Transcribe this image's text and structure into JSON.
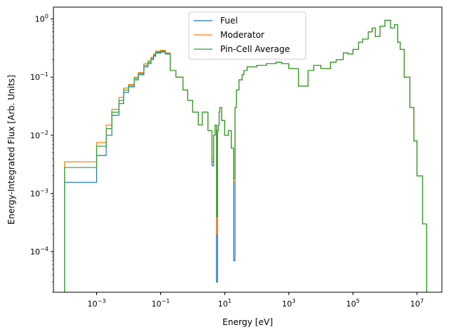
{
  "chart_data": {
    "type": "line",
    "subtype": "step",
    "title": "",
    "xlabel": "Energy [eV]",
    "ylabel": "Energy-Integrated Flux [Arb. Units]",
    "xscale": "log",
    "yscale": "log",
    "xlim": [
      4.5e-05,
      60000000.0
    ],
    "ylim": [
      2e-05,
      1.6
    ],
    "x_ticks": [
      {
        "value": 0.001,
        "base": "10",
        "exp": "−3"
      },
      {
        "value": 0.1,
        "base": "10",
        "exp": "−1"
      },
      {
        "value": 10,
        "base": "10",
        "exp": "1"
      },
      {
        "value": 1000,
        "base": "10",
        "exp": "3"
      },
      {
        "value": 100000,
        "base": "10",
        "exp": "5"
      },
      {
        "value": 10000000,
        "base": "10",
        "exp": "7"
      }
    ],
    "y_ticks": [
      {
        "value": 0.0001,
        "base": "10",
        "exp": "−4"
      },
      {
        "value": 0.001,
        "base": "10",
        "exp": "−3"
      },
      {
        "value": 0.01,
        "base": "10",
        "exp": "−2"
      },
      {
        "value": 0.1,
        "base": "10",
        "exp": "−1"
      },
      {
        "value": 1,
        "base": "10",
        "exp": "0"
      }
    ],
    "legend_position": "top-center",
    "grid": false,
    "series": [
      {
        "name": "Fuel",
        "color": "#1f77b4",
        "x": [
          0.0001,
          0.0005,
          0.001,
          0.002,
          0.003,
          0.005,
          0.007,
          0.01,
          0.015,
          0.02,
          0.03,
          0.04,
          0.05,
          0.06,
          0.07,
          0.08,
          0.1,
          0.14,
          0.2,
          0.3,
          0.5,
          0.7,
          1,
          1.5,
          2,
          3,
          4,
          4.5,
          5,
          5.5,
          6,
          6.3,
          6.7,
          7,
          8,
          10,
          13,
          16,
          19,
          21,
          23,
          28,
          35,
          40,
          50,
          100,
          200,
          400,
          600,
          1000,
          2000,
          4000,
          6000,
          10000,
          20000,
          30000,
          50000,
          70000,
          100000,
          150000,
          200000,
          300000,
          400000,
          500000,
          700000,
          1000000,
          1500000,
          2000000,
          2500000,
          3000000,
          4000000,
          6000000,
          8000000,
          10000000,
          15000000,
          20000000
        ],
        "y": [
          0.00155,
          0.00155,
          0.0045,
          0.01,
          0.022,
          0.035,
          0.055,
          0.068,
          0.09,
          0.11,
          0.15,
          0.17,
          0.2,
          0.23,
          0.26,
          0.26,
          0.27,
          0.25,
          0.13,
          0.1,
          0.06,
          0.04,
          0.025,
          0.015,
          0.025,
          0.012,
          0.003,
          0.01,
          0.015,
          3e-05,
          0.012,
          0.015,
          0.025,
          0.03,
          0.018,
          0.01,
          0.012,
          0.006,
          7e-05,
          0.03,
          0.06,
          0.09,
          0.11,
          0.13,
          0.15,
          0.16,
          0.17,
          0.18,
          0.17,
          0.14,
          0.07,
          0.13,
          0.16,
          0.14,
          0.18,
          0.2,
          0.26,
          0.25,
          0.3,
          0.4,
          0.45,
          0.6,
          0.7,
          0.5,
          0.75,
          0.95,
          0.7,
          0.8,
          0.4,
          0.3,
          0.1,
          0.03,
          0.008,
          0.002,
          0.0003,
          2e-05
        ]
      },
      {
        "name": "Moderator",
        "color": "#ff7f0e",
        "x": [
          0.0001,
          0.0005,
          0.001,
          0.002,
          0.003,
          0.005,
          0.007,
          0.01,
          0.015,
          0.02,
          0.03,
          0.04,
          0.05,
          0.06,
          0.07,
          0.08,
          0.1,
          0.14,
          0.2,
          0.3,
          0.5,
          0.7,
          1,
          1.5,
          2,
          3,
          4,
          4.5,
          5,
          5.5,
          6,
          6.3,
          6.7,
          7,
          8,
          10,
          13,
          16,
          19,
          21,
          23,
          28,
          35,
          40,
          50,
          100,
          200,
          400,
          600,
          1000,
          2000,
          4000,
          6000,
          10000,
          20000,
          30000,
          50000,
          70000,
          100000,
          150000,
          200000,
          300000,
          400000,
          500000,
          700000,
          1000000,
          1500000,
          2000000,
          2500000,
          3000000,
          4000000,
          6000000,
          8000000,
          10000000,
          15000000,
          20000000
        ],
        "y": [
          0.0035,
          0.0035,
          0.0075,
          0.015,
          0.028,
          0.045,
          0.065,
          0.075,
          0.1,
          0.12,
          0.17,
          0.19,
          0.22,
          0.25,
          0.28,
          0.28,
          0.29,
          0.26,
          0.13,
          0.1,
          0.06,
          0.04,
          0.025,
          0.015,
          0.025,
          0.012,
          0.004,
          0.01,
          0.015,
          0.0002,
          0.012,
          0.015,
          0.025,
          0.03,
          0.018,
          0.01,
          0.012,
          0.006,
          0.0016,
          0.03,
          0.06,
          0.09,
          0.11,
          0.13,
          0.15,
          0.16,
          0.17,
          0.18,
          0.17,
          0.14,
          0.07,
          0.13,
          0.16,
          0.14,
          0.18,
          0.2,
          0.26,
          0.25,
          0.3,
          0.4,
          0.45,
          0.6,
          0.7,
          0.5,
          0.75,
          0.95,
          0.7,
          0.8,
          0.4,
          0.3,
          0.1,
          0.03,
          0.008,
          0.002,
          0.0003,
          2e-05
        ]
      },
      {
        "name": "Pin-Cell Average",
        "color": "#2ca02c",
        "x": [
          0.0001,
          0.0005,
          0.001,
          0.002,
          0.003,
          0.005,
          0.007,
          0.01,
          0.015,
          0.02,
          0.03,
          0.04,
          0.05,
          0.06,
          0.07,
          0.08,
          0.1,
          0.14,
          0.2,
          0.3,
          0.5,
          0.7,
          1,
          1.5,
          2,
          3,
          4,
          4.5,
          5,
          5.5,
          6,
          6.3,
          6.7,
          7,
          8,
          10,
          13,
          16,
          19,
          21,
          23,
          28,
          35,
          40,
          50,
          100,
          200,
          400,
          600,
          1000,
          2000,
          4000,
          6000,
          10000,
          20000,
          30000,
          50000,
          70000,
          100000,
          150000,
          200000,
          300000,
          400000,
          500000,
          700000,
          1000000,
          1500000,
          2000000,
          2500000,
          3000000,
          4000000,
          6000000,
          8000000,
          10000000,
          15000000,
          20000000
        ],
        "y": [
          0.0028,
          0.0028,
          0.0065,
          0.013,
          0.025,
          0.04,
          0.06,
          0.072,
          0.095,
          0.115,
          0.16,
          0.18,
          0.21,
          0.24,
          0.27,
          0.27,
          0.28,
          0.255,
          0.13,
          0.1,
          0.06,
          0.04,
          0.025,
          0.015,
          0.025,
          0.012,
          0.0035,
          0.01,
          0.015,
          0.0004,
          0.012,
          0.015,
          0.025,
          0.03,
          0.018,
          0.01,
          0.012,
          0.006,
          0.0018,
          0.03,
          0.06,
          0.09,
          0.11,
          0.13,
          0.15,
          0.16,
          0.17,
          0.18,
          0.17,
          0.14,
          0.07,
          0.13,
          0.16,
          0.14,
          0.18,
          0.2,
          0.26,
          0.25,
          0.3,
          0.4,
          0.45,
          0.6,
          0.7,
          0.5,
          0.75,
          0.95,
          0.7,
          0.8,
          0.4,
          0.3,
          0.1,
          0.03,
          0.008,
          0.002,
          0.0003,
          2e-05
        ]
      }
    ]
  }
}
